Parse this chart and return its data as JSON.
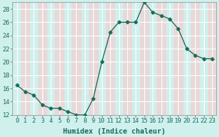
{
  "x": [
    0,
    1,
    2,
    3,
    4,
    5,
    6,
    7,
    8,
    9,
    10,
    11,
    12,
    13,
    14,
    15,
    16,
    17,
    18,
    19,
    20,
    21,
    22,
    23
  ],
  "y": [
    16.5,
    15.5,
    15.0,
    13.5,
    13.0,
    13.0,
    12.5,
    12.0,
    12.0,
    14.5,
    20.0,
    24.5,
    26.0,
    26.0,
    26.0,
    29.0,
    27.5,
    27.0,
    26.5,
    25.0,
    22.0,
    21.0,
    20.5,
    20.5
  ],
  "line_color": "#1a6b5a",
  "marker": "D",
  "marker_size": 2.5,
  "background_color": "#cff0ec",
  "stripe_color": "#e8d8d8",
  "grid_color": "#ffffff",
  "xlabel": "Humidex (Indice chaleur)",
  "xlim": [
    -0.5,
    23.5
  ],
  "ylim": [
    12,
    29
  ],
  "yticks": [
    12,
    14,
    16,
    18,
    20,
    22,
    24,
    26,
    28
  ],
  "xticks": [
    0,
    1,
    2,
    3,
    4,
    5,
    6,
    7,
    8,
    9,
    10,
    11,
    12,
    13,
    14,
    15,
    16,
    17,
    18,
    19,
    20,
    21,
    22,
    23
  ],
  "tick_label_fontsize": 6.5,
  "xlabel_fontsize": 7.5
}
